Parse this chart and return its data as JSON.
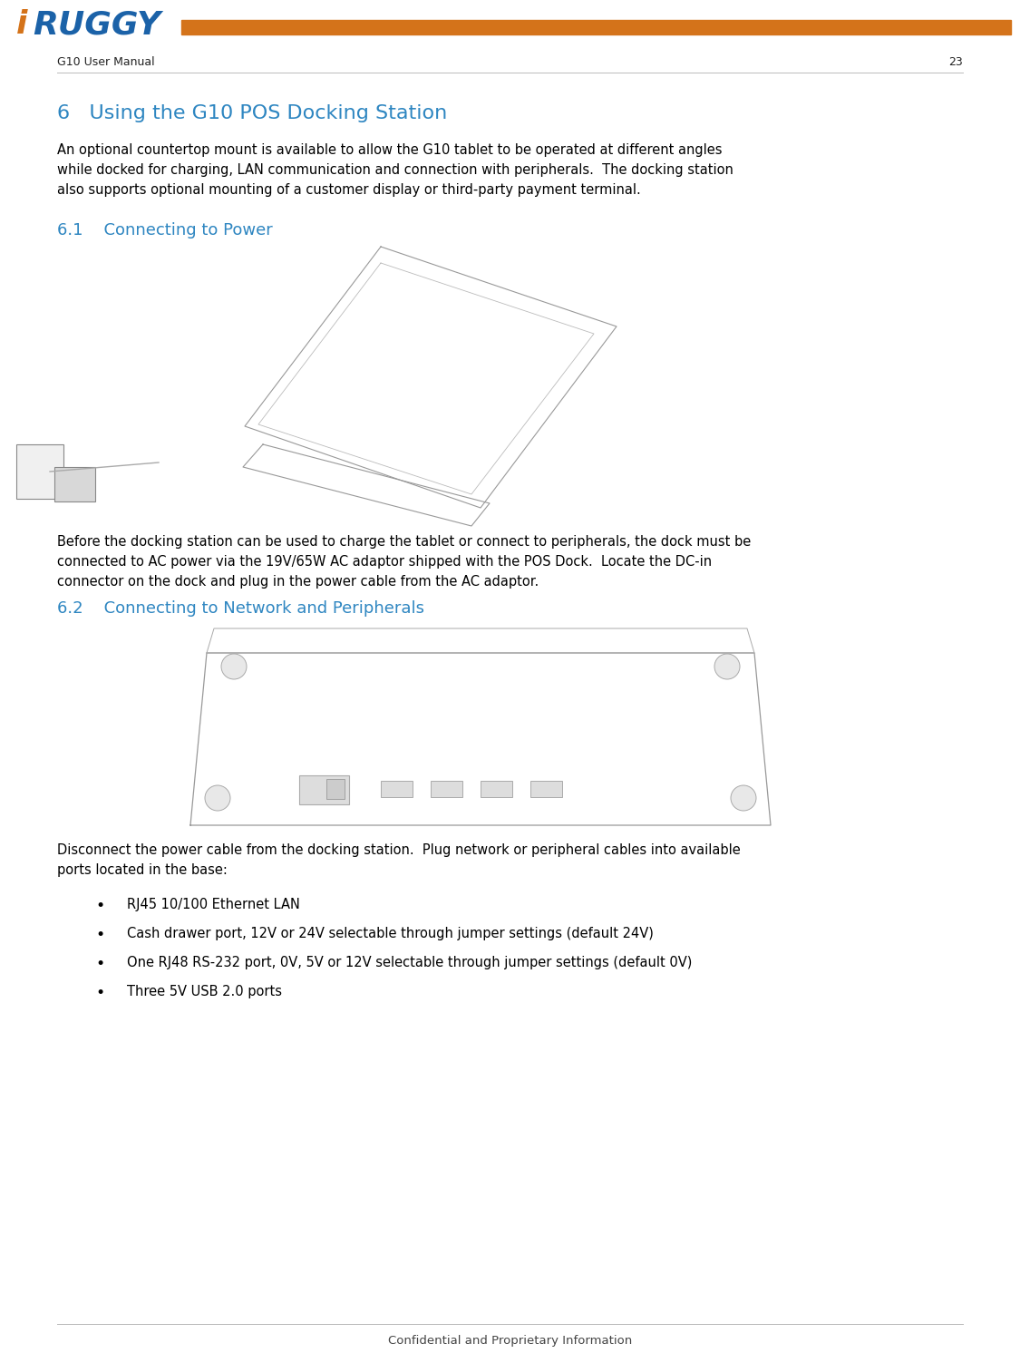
{
  "page_width": 11.25,
  "page_height": 15.03,
  "dpi": 100,
  "bg_color": "#ffffff",
  "accent_orange": "#D4731A",
  "logo_blue": "#1B62A8",
  "logo_i_color": "#D4731A",
  "header_left_text": "G10 User Manual",
  "header_right_text": "23",
  "header_text_color": "#222222",
  "chapter_title": "6   Using the G10 POS Docking Station",
  "chapter_title_color": "#2E86C1",
  "body_text_color": "#000000",
  "section_title_color": "#2E86C1",
  "para1_lines": [
    "An optional countertop mount is available to allow the G10 tablet to be operated at different angles",
    "while docked for charging, LAN communication and connection with peripherals.  The docking station",
    "also supports optional mounting of a customer display or third-party payment terminal."
  ],
  "section1_title": "6.1    Connecting to Power",
  "para2_lines": [
    "Before the docking station can be used to charge the tablet or connect to peripherals, the dock must be",
    "connected to AC power via the 19V/65W AC adaptor shipped with the POS Dock.  Locate the DC-in",
    "connector on the dock and plug in the power cable from the AC adaptor."
  ],
  "section2_title": "6.2    Connecting to Network and Peripherals",
  "para3_lines": [
    "Disconnect the power cable from the docking station.  Plug network or peripheral cables into available",
    "ports located in the base:"
  ],
  "bullets": [
    "RJ45 10/100 Ethernet LAN",
    "Cash drawer port, 12V or 24V selectable through jumper settings (default 24V)",
    "One RJ48 RS-232 port, 0V, 5V or 12V selectable through jumper settings (default 0V)",
    "Three 5V USB 2.0 ports"
  ],
  "footer_text": "Confidential and Proprietary Information",
  "footer_color": "#444444",
  "heading_font_size": 16,
  "body_font_size": 10.5,
  "section_font_size": 13,
  "header_font_size": 9,
  "footer_font_size": 9.5,
  "logo_font_size": 26
}
